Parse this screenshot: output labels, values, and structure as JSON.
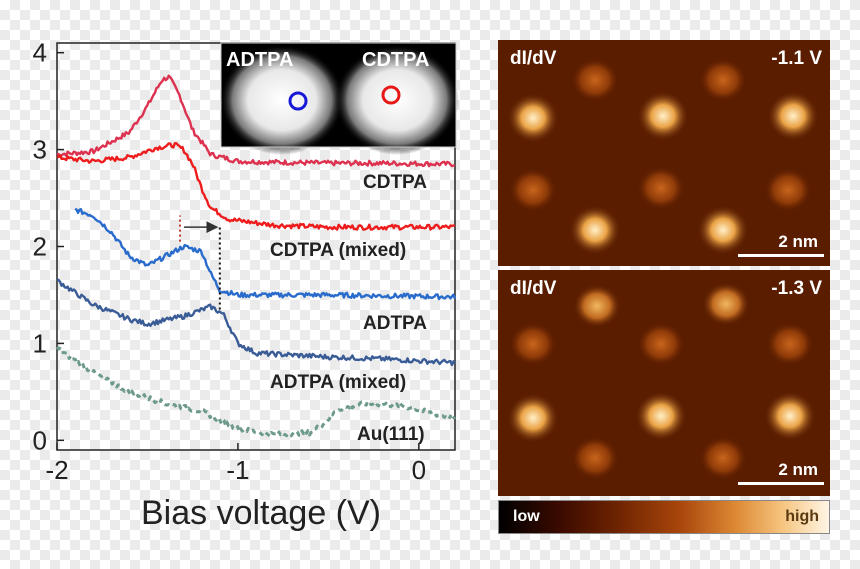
{
  "chart_data": {
    "type": "line",
    "xlabel": "Bias voltage (V)",
    "ylabel": "",
    "xlim": [
      -2,
      0.2
    ],
    "ylim": [
      -0.1,
      4.1
    ],
    "xticks": [
      -2,
      -1,
      0
    ],
    "xtick_labels": [
      "-2",
      "-1",
      "0"
    ],
    "yticks": [
      0,
      1,
      2,
      3,
      4
    ],
    "ytick_labels": [
      "0",
      "1",
      "2",
      "3",
      "4"
    ],
    "grid": false,
    "series": [
      {
        "name": "CDTPA",
        "color": "#dc3250",
        "style": "solid",
        "x": [
          -2.0,
          -1.8,
          -1.6,
          -1.5,
          -1.42,
          -1.38,
          -1.32,
          -1.25,
          -1.15,
          -1.0,
          -0.8,
          -0.5,
          -0.2,
          0.2
        ],
        "y": [
          2.95,
          2.98,
          3.18,
          3.45,
          3.72,
          3.75,
          3.55,
          3.2,
          2.95,
          2.88,
          2.87,
          2.86,
          2.86,
          2.85
        ]
      },
      {
        "name": "CDTPA (mixed)",
        "color": "#ee1c1c",
        "style": "solid",
        "x": [
          -2.0,
          -1.8,
          -1.6,
          -1.45,
          -1.35,
          -1.3,
          -1.25,
          -1.2,
          -1.15,
          -1.05,
          -0.8,
          -0.5,
          -0.2,
          0.2
        ],
        "y": [
          2.92,
          2.88,
          2.92,
          3.02,
          3.05,
          3.0,
          2.85,
          2.6,
          2.4,
          2.28,
          2.22,
          2.2,
          2.2,
          2.2
        ]
      },
      {
        "name": "ADTPA",
        "color": "#2a6ccc",
        "style": "solid",
        "x": [
          -1.9,
          -1.8,
          -1.7,
          -1.6,
          -1.5,
          -1.4,
          -1.3,
          -1.2,
          -1.15,
          -1.1,
          -1.0,
          -0.8,
          -0.5,
          0.2
        ],
        "y": [
          2.38,
          2.32,
          2.15,
          1.9,
          1.8,
          1.9,
          2.0,
          1.95,
          1.72,
          1.55,
          1.5,
          1.5,
          1.5,
          1.48
        ]
      },
      {
        "name": "ADTPA (mixed)",
        "color": "#3a5c96",
        "style": "solid",
        "x": [
          -2.0,
          -1.8,
          -1.6,
          -1.5,
          -1.3,
          -1.15,
          -1.08,
          -1.0,
          -0.9,
          -0.7,
          -0.5,
          -0.2,
          0.2
        ],
        "y": [
          1.65,
          1.4,
          1.25,
          1.2,
          1.28,
          1.38,
          1.3,
          1.0,
          0.9,
          0.88,
          0.86,
          0.84,
          0.8
        ]
      },
      {
        "name": "Au(111)",
        "color": "#6d9a8a",
        "style": "dashed",
        "x": [
          -2.0,
          -1.8,
          -1.6,
          -1.4,
          -1.2,
          -1.0,
          -0.8,
          -0.6,
          -0.52,
          -0.45,
          -0.3,
          -0.1,
          0.2
        ],
        "y": [
          0.95,
          0.7,
          0.5,
          0.38,
          0.3,
          0.12,
          0.06,
          0.08,
          0.18,
          0.32,
          0.38,
          0.36,
          0.22
        ]
      }
    ],
    "annotations": {
      "arrow": {
        "from_x": -1.32,
        "to_x": -1.1,
        "y": 2.2
      },
      "dotted_lines": [
        {
          "x": -1.32,
          "y0": 2.05,
          "y1": 2.32
        },
        {
          "x": -1.1,
          "y0": 1.35,
          "y1": 2.2
        }
      ]
    },
    "inset": {
      "labels": [
        "ADTPA",
        "CDTPA"
      ],
      "marker_colors": [
        "#1818d8",
        "#e81818"
      ]
    }
  },
  "maps": [
    {
      "label": "dI/dV",
      "bias": "-1.1 V",
      "scalebar": "2 nm"
    },
    {
      "label": "dI/dV",
      "bias": "-1.3 V",
      "scalebar": "2 nm"
    }
  ],
  "colorbar": {
    "low": "low",
    "high": "high"
  },
  "colors": {
    "map_background": "#5a1d00",
    "bright_spot": "#fff0c8",
    "text": "#222222"
  }
}
